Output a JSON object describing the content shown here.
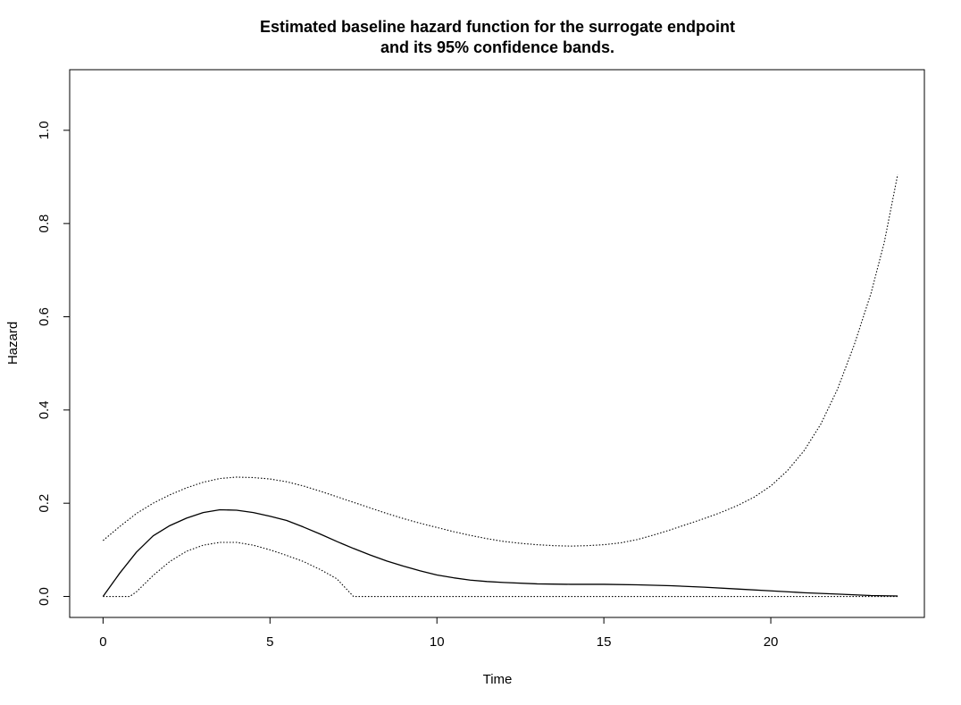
{
  "chart_data": {
    "type": "line",
    "title_line1": "Estimated baseline hazard function for the surrogate endpoint",
    "title_line2": "and its 95% confidence bands.",
    "xlabel": "Time",
    "ylabel": "Hazard",
    "xlim": [
      -1,
      24.6
    ],
    "ylim": [
      -0.045,
      1.13
    ],
    "x_ticks": [
      0,
      5,
      10,
      15,
      20
    ],
    "x_tick_labels": [
      "0",
      "5",
      "10",
      "15",
      "20"
    ],
    "y_ticks": [
      0.0,
      0.2,
      0.4,
      0.6,
      0.8,
      1.0
    ],
    "y_tick_labels": [
      "0.0",
      "0.2",
      "0.4",
      "0.6",
      "0.8",
      "1.0"
    ],
    "grid": false,
    "legend": "none",
    "series": [
      {
        "style": "solid",
        "points": [
          [
            0,
            0.0
          ],
          [
            0.5,
            0.05
          ],
          [
            1,
            0.095
          ],
          [
            1.5,
            0.13
          ],
          [
            2,
            0.152
          ],
          [
            2.5,
            0.168
          ],
          [
            3,
            0.18
          ],
          [
            3.5,
            0.186
          ],
          [
            4,
            0.185
          ],
          [
            4.5,
            0.18
          ],
          [
            5,
            0.172
          ],
          [
            5.5,
            0.163
          ],
          [
            6,
            0.149
          ],
          [
            6.5,
            0.134
          ],
          [
            7,
            0.118
          ],
          [
            7.5,
            0.103
          ],
          [
            8,
            0.089
          ],
          [
            8.5,
            0.076
          ],
          [
            9,
            0.065
          ],
          [
            9.5,
            0.055
          ],
          [
            10,
            0.046
          ],
          [
            10.5,
            0.04
          ],
          [
            11,
            0.035
          ],
          [
            11.5,
            0.032
          ],
          [
            12,
            0.03
          ],
          [
            13,
            0.027
          ],
          [
            14,
            0.026
          ],
          [
            15,
            0.026
          ],
          [
            16,
            0.025
          ],
          [
            17,
            0.023
          ],
          [
            18,
            0.02
          ],
          [
            19,
            0.016
          ],
          [
            20,
            0.012
          ],
          [
            21,
            0.008
          ],
          [
            22,
            0.005
          ],
          [
            23,
            0.002
          ],
          [
            23.8,
            0.001
          ]
        ]
      },
      {
        "style": "dotted",
        "points": [
          [
            0,
            0.12
          ],
          [
            0.5,
            0.15
          ],
          [
            1,
            0.178
          ],
          [
            1.5,
            0.2
          ],
          [
            2,
            0.218
          ],
          [
            2.5,
            0.233
          ],
          [
            3,
            0.245
          ],
          [
            3.5,
            0.253
          ],
          [
            4,
            0.256
          ],
          [
            4.5,
            0.255
          ],
          [
            5,
            0.252
          ],
          [
            5.5,
            0.246
          ],
          [
            6,
            0.237
          ],
          [
            6.5,
            0.226
          ],
          [
            7,
            0.214
          ],
          [
            7.5,
            0.202
          ],
          [
            8,
            0.19
          ],
          [
            8.5,
            0.178
          ],
          [
            9,
            0.167
          ],
          [
            9.5,
            0.157
          ],
          [
            10,
            0.148
          ],
          [
            10.5,
            0.139
          ],
          [
            11,
            0.131
          ],
          [
            11.5,
            0.124
          ],
          [
            12,
            0.118
          ],
          [
            12.5,
            0.114
          ],
          [
            13,
            0.111
          ],
          [
            13.5,
            0.109
          ],
          [
            14,
            0.108
          ],
          [
            14.5,
            0.109
          ],
          [
            15,
            0.111
          ],
          [
            15.5,
            0.115
          ],
          [
            16,
            0.122
          ],
          [
            16.5,
            0.132
          ],
          [
            17,
            0.143
          ],
          [
            17.5,
            0.155
          ],
          [
            18,
            0.167
          ],
          [
            18.5,
            0.18
          ],
          [
            19,
            0.195
          ],
          [
            19.5,
            0.213
          ],
          [
            20,
            0.237
          ],
          [
            20.5,
            0.27
          ],
          [
            21,
            0.313
          ],
          [
            21.5,
            0.37
          ],
          [
            22,
            0.445
          ],
          [
            22.5,
            0.54
          ],
          [
            23,
            0.65
          ],
          [
            23.4,
            0.76
          ],
          [
            23.8,
            0.905
          ]
        ]
      },
      {
        "style": "dotted",
        "points": [
          [
            0,
            0.0
          ],
          [
            0.8,
            0.0
          ],
          [
            1,
            0.01
          ],
          [
            1.5,
            0.045
          ],
          [
            2,
            0.075
          ],
          [
            2.5,
            0.097
          ],
          [
            3,
            0.11
          ],
          [
            3.5,
            0.116
          ],
          [
            4,
            0.116
          ],
          [
            4.5,
            0.11
          ],
          [
            5,
            0.1
          ],
          [
            5.5,
            0.088
          ],
          [
            6,
            0.075
          ],
          [
            6.5,
            0.058
          ],
          [
            7,
            0.038
          ],
          [
            7.5,
            0.0
          ],
          [
            10,
            0.0
          ],
          [
            15,
            0.0
          ],
          [
            20,
            0.0
          ],
          [
            23.8,
            0.0
          ]
        ]
      }
    ]
  }
}
